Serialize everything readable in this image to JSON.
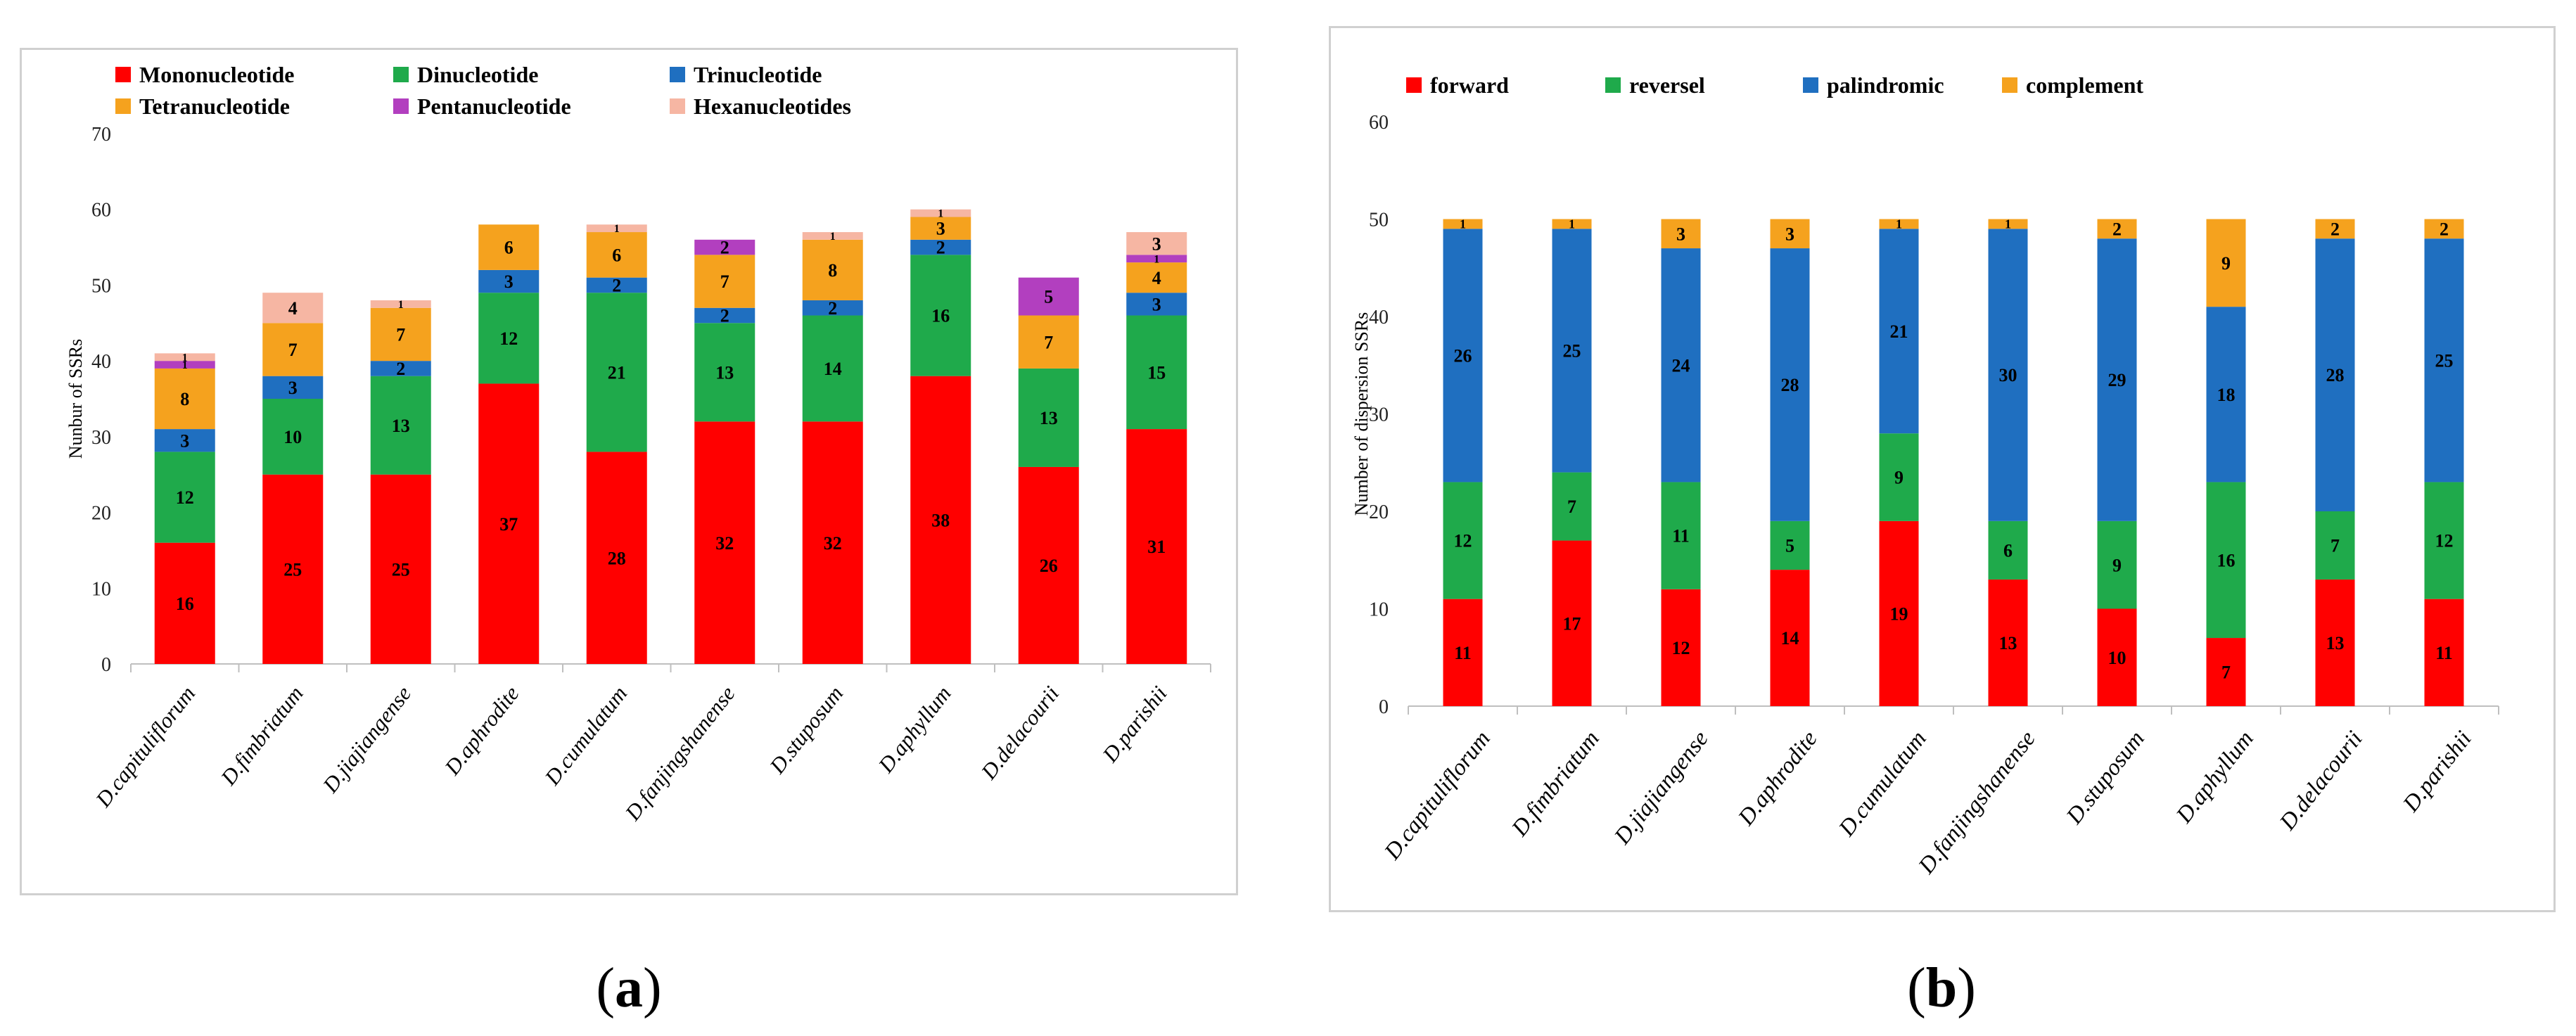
{
  "captions": {
    "a": "a",
    "b": "b"
  },
  "chart_data": [
    {
      "type": "bar",
      "stacked": true,
      "xlabel": "",
      "ylabel": "Nunbur of SSRs",
      "ylim": [
        0,
        70
      ],
      "yticks": [
        0,
        10,
        20,
        30,
        40,
        50,
        60,
        70
      ],
      "grid": false,
      "legend": "top",
      "categories": [
        "D.capituliflorum",
        "D.fimbriatum",
        "D.jiajiangense",
        "D.aphrodite",
        "D.cumulatum",
        "D.fanjingshanense",
        "D.stuposum",
        "D.aphyllum",
        "D.delacourii",
        "D.parishii"
      ],
      "series": [
        {
          "name": "Mononucleotide",
          "color": "#ff0000",
          "values": [
            16,
            25,
            25,
            37,
            28,
            32,
            32,
            38,
            26,
            31
          ]
        },
        {
          "name": "Dinucleotide",
          "color": "#1faa4b",
          "values": [
            12,
            10,
            13,
            12,
            21,
            13,
            14,
            16,
            13,
            15
          ]
        },
        {
          "name": "Trinucleotide",
          "color": "#1f6fc0",
          "values": [
            3,
            3,
            2,
            3,
            2,
            2,
            2,
            2,
            0,
            3
          ]
        },
        {
          "name": "Tetranucleotide",
          "color": "#f5a21e",
          "values": [
            8,
            7,
            7,
            6,
            6,
            7,
            8,
            3,
            7,
            4
          ]
        },
        {
          "name": "Pentanucleotide",
          "color": "#b23fbf",
          "values": [
            1,
            0,
            0,
            0,
            0,
            2,
            0,
            0,
            5,
            1
          ]
        },
        {
          "name": "Hexanucleotides",
          "color": "#f6b6a3",
          "values": [
            1,
            4,
            1,
            0,
            1,
            0,
            1,
            1,
            0,
            3
          ]
        }
      ]
    },
    {
      "type": "bar",
      "stacked": true,
      "xlabel": "",
      "ylabel": "Number of dispersion SSRs",
      "ylim": [
        0,
        60
      ],
      "yticks": [
        0,
        10,
        20,
        30,
        40,
        50,
        60
      ],
      "grid": false,
      "legend": "top",
      "categories": [
        "D.capituliflorum",
        "D.fimbriatum",
        "D.jiajiangense",
        "D.aphrodite",
        "D.cumulatum",
        "D.fanjingshanense",
        "D.stuposum",
        "D.aphyllum",
        "D.delacourii",
        "D.parishii"
      ],
      "series": [
        {
          "name": "forward",
          "color": "#ff0000",
          "values": [
            11,
            17,
            12,
            14,
            19,
            13,
            10,
            7,
            13,
            11
          ]
        },
        {
          "name": "reversel",
          "color": "#1faa4b",
          "values": [
            12,
            7,
            11,
            5,
            9,
            6,
            9,
            16,
            7,
            12
          ]
        },
        {
          "name": "palindromic",
          "color": "#1f6fc0",
          "values": [
            26,
            25,
            24,
            28,
            21,
            30,
            29,
            18,
            28,
            25
          ]
        },
        {
          "name": "complement",
          "color": "#f5a21e",
          "values": [
            1,
            1,
            3,
            3,
            1,
            1,
            2,
            9,
            2,
            2
          ]
        }
      ]
    }
  ]
}
